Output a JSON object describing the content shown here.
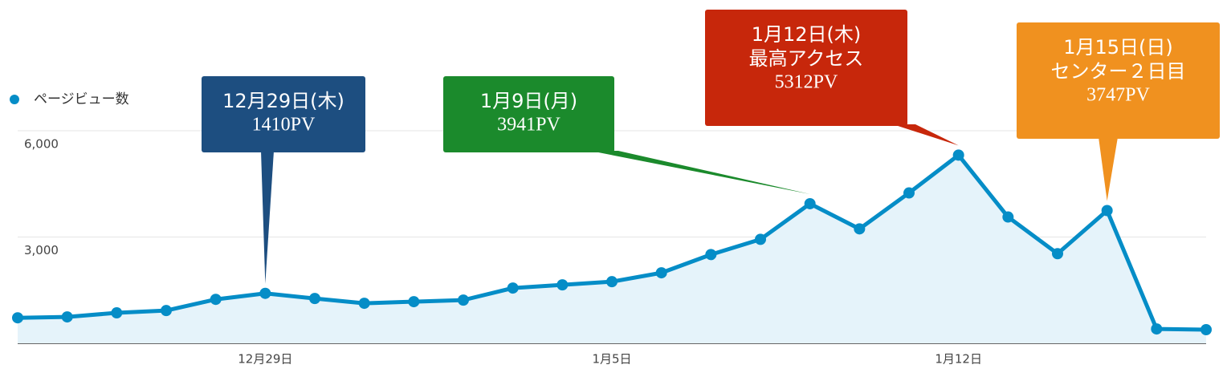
{
  "chart_data": {
    "type": "line",
    "categories": [
      null,
      null,
      null,
      null,
      null,
      "12月29日",
      null,
      null,
      null,
      null,
      null,
      null,
      "1月5日",
      null,
      null,
      null,
      null,
      null,
      null,
      "1月12日",
      null,
      null,
      null,
      null,
      null
    ],
    "series": [
      {
        "name": "ページビュー数",
        "color": "#058dc7",
        "values": [
          720,
          745,
          860,
          925,
          1240,
          1410,
          1265,
          1130,
          1175,
          1220,
          1560,
          1650,
          1740,
          1990,
          2505,
          2935,
          3941,
          3230,
          4245,
          5312,
          3565,
          2530,
          3747,
          405,
          385
        ]
      }
    ],
    "ylim": [
      0,
      6000
    ],
    "yticks": [
      {
        "value": 3000,
        "label": "3,000"
      },
      {
        "value": 6000,
        "label": "6,000"
      }
    ],
    "grid": true,
    "annotations": [
      {
        "lines": [
          "12月29日(木)",
          "1410PV"
        ],
        "color": "#1d4e80"
      },
      {
        "lines": [
          "1月9日(月)",
          "3941PV"
        ],
        "color": "#1b8a2c"
      },
      {
        "lines": [
          "1月12日(木)",
          "最高アクセス",
          "5312PV"
        ],
        "color": "#c7270b"
      },
      {
        "lines": [
          "1月15日(日)",
          "センター２日目",
          "3747PV"
        ],
        "color": "#f0911f"
      }
    ]
  }
}
